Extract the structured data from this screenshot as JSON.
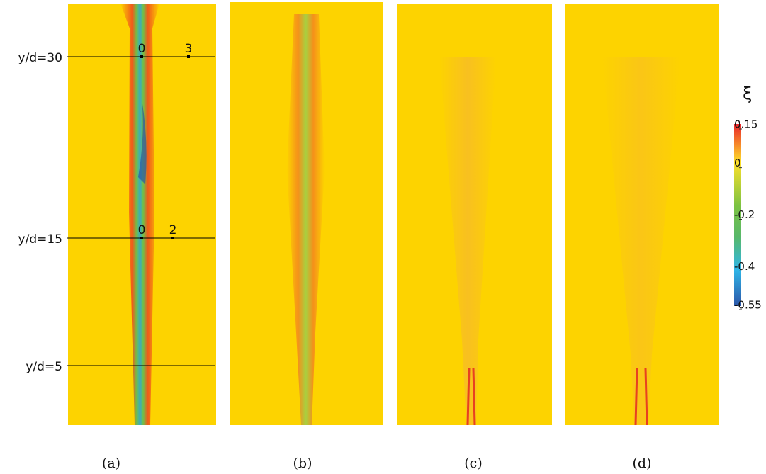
{
  "panels": [
    {
      "caption": "(a)"
    },
    {
      "caption": "(b)"
    },
    {
      "caption": "(c)"
    },
    {
      "caption": "(d)"
    }
  ],
  "stations": [
    {
      "label": "y/d=30",
      "points": [
        "0",
        "3"
      ]
    },
    {
      "label": "y/d=15",
      "points": [
        "0",
        "2"
      ]
    },
    {
      "label": "y/d=5",
      "points": []
    }
  ],
  "colorbar": {
    "title": "ξ",
    "range": [
      -0.55,
      0.15
    ],
    "ticks": [
      0.15,
      0,
      -0.2,
      -0.4,
      -0.55
    ]
  }
}
